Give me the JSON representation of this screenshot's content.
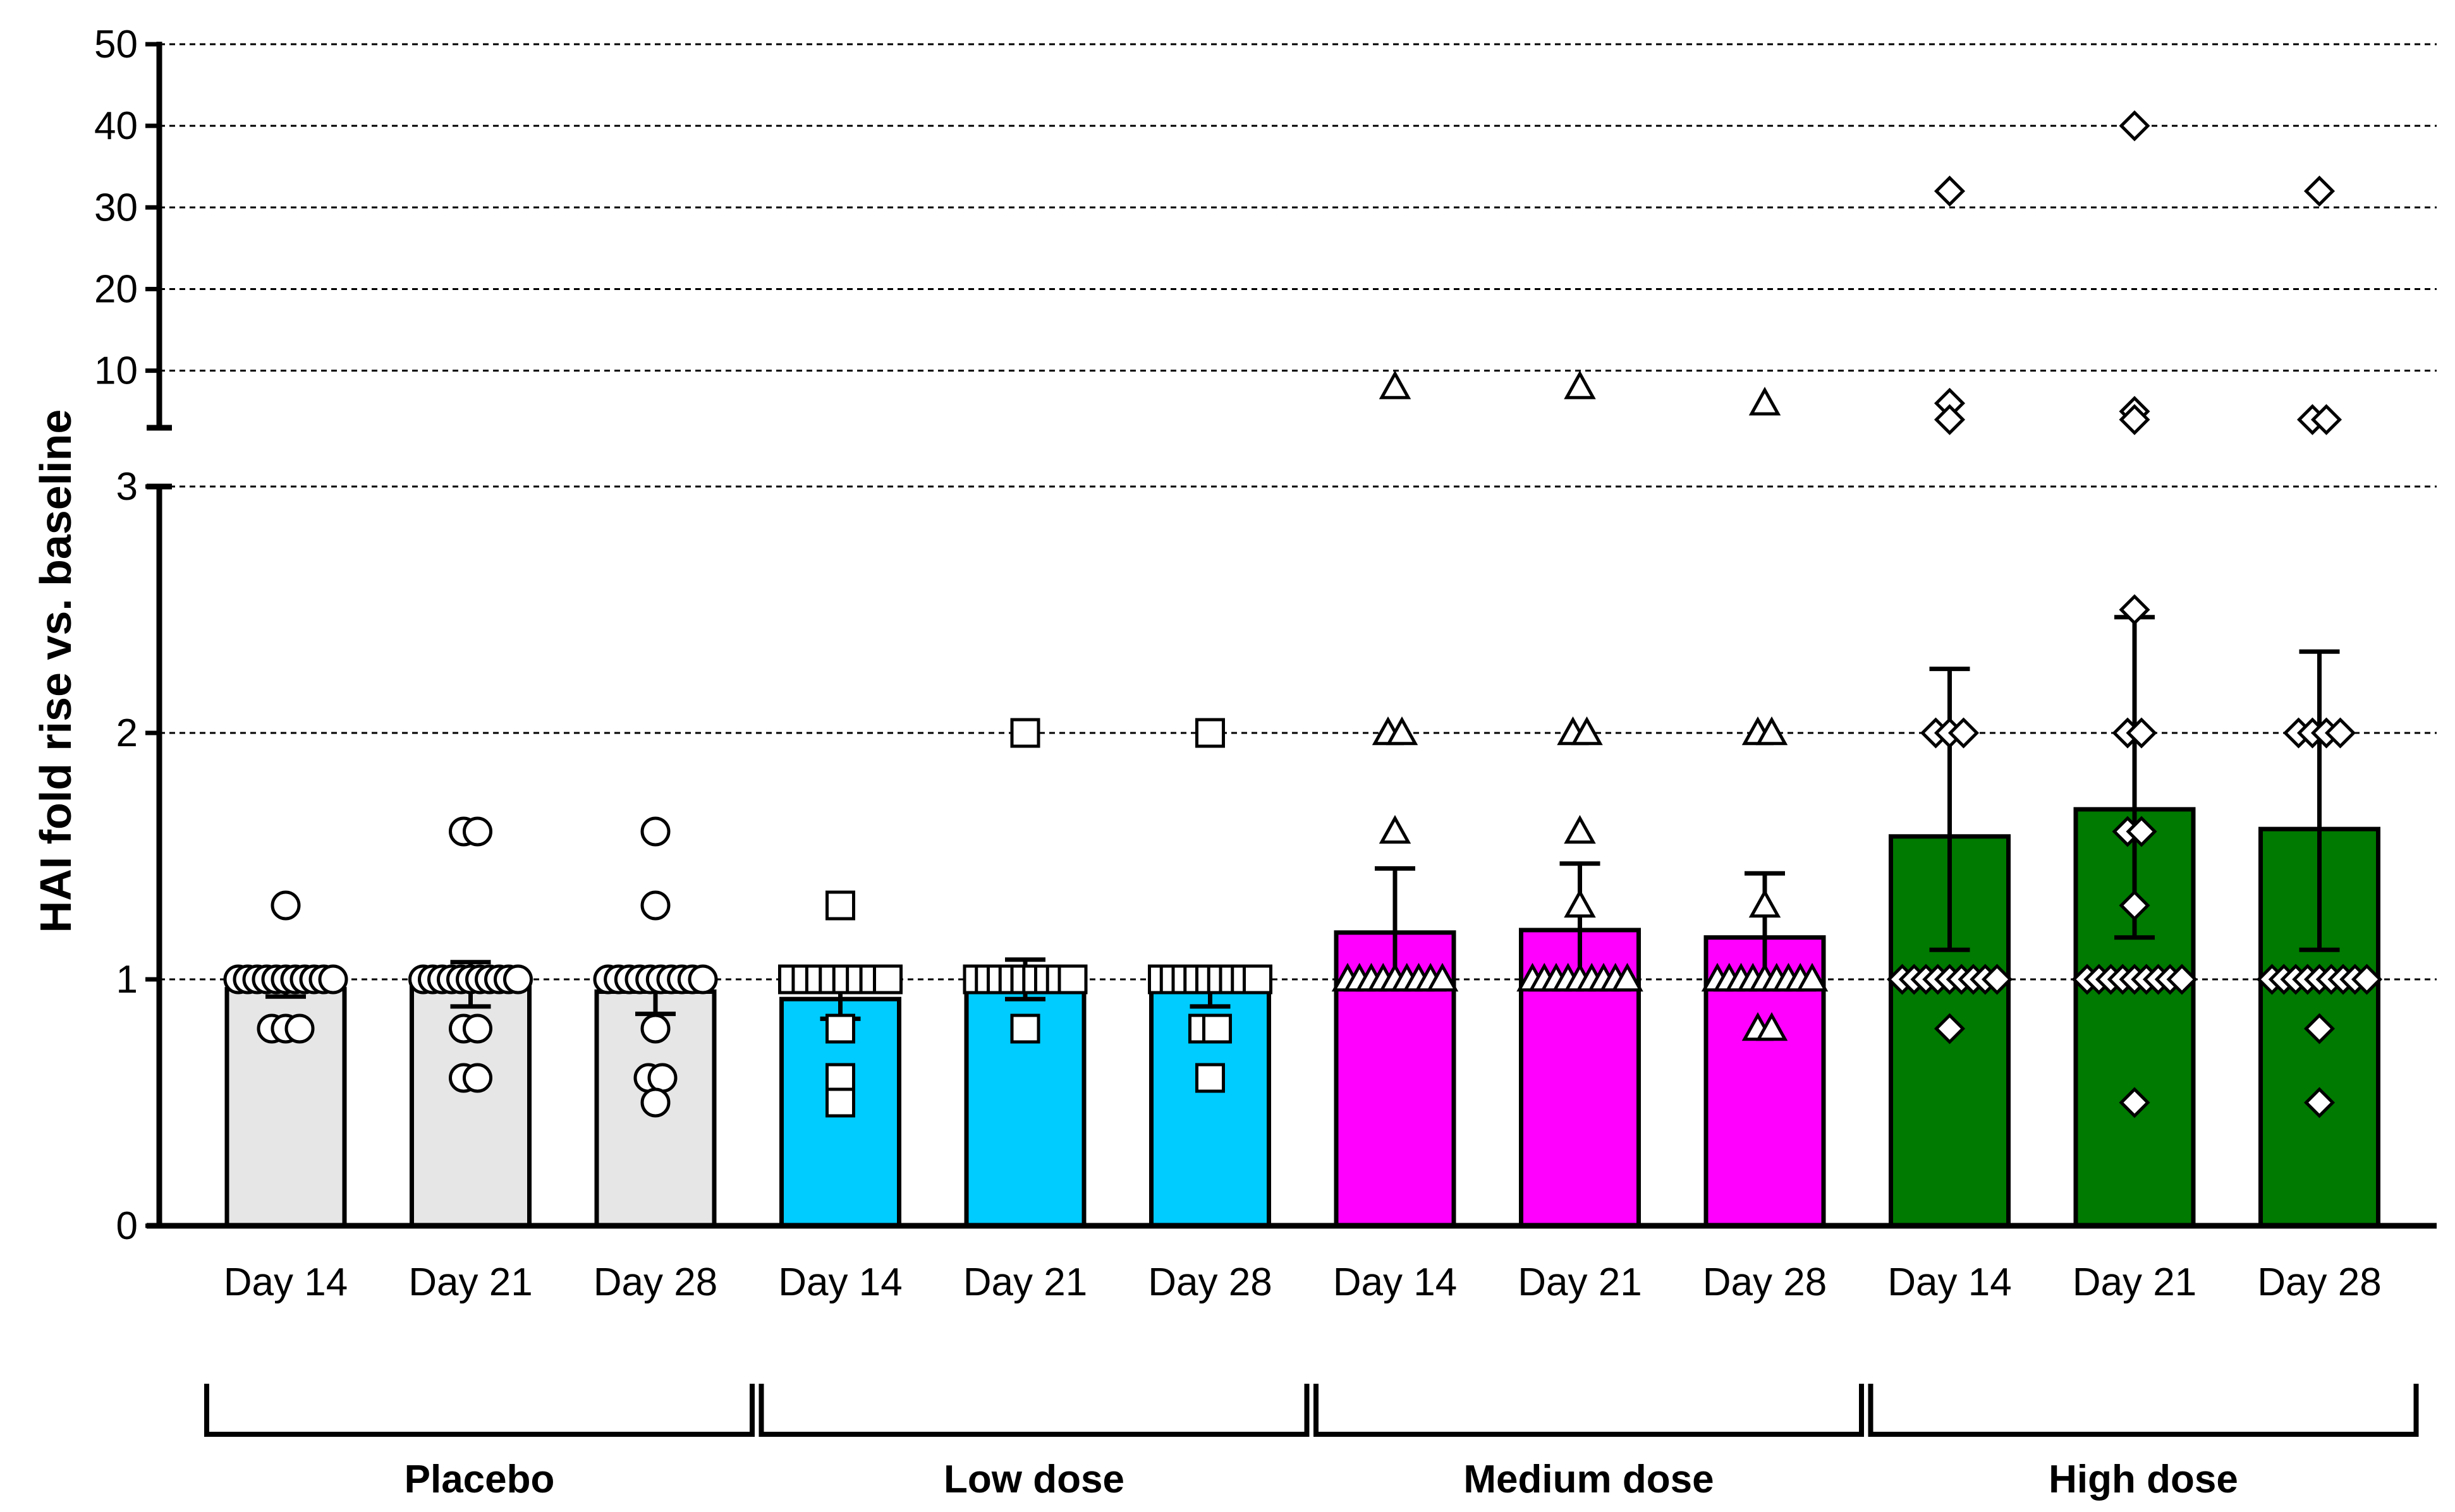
{
  "chart_data": {
    "type": "bar",
    "ylabel": "HAI fold rise vs. baseline",
    "y_axis": {
      "broken": true,
      "lower_ticks": [
        0,
        1,
        2,
        3
      ],
      "upper_ticks": [
        10,
        20,
        30,
        40,
        50
      ],
      "lower_range": [
        0,
        3
      ],
      "upper_range": [
        3,
        50
      ]
    },
    "grid": "dashed horizontal at 1, 2, 3, 10, 20, 30, 40, 50",
    "categories": [
      "Day 14",
      "Day 21",
      "Day 28",
      "Day 14",
      "Day 21",
      "Day 28",
      "Day 14",
      "Day 21",
      "Day 28",
      "Day 14",
      "Day 21",
      "Day 28"
    ],
    "groups": [
      {
        "name": "Placebo",
        "color": "#e6e6e6",
        "marker": "circle"
      },
      {
        "name": "Low dose",
        "color": "#00ccff",
        "marker": "square"
      },
      {
        "name": "Medium dose",
        "color": "#ff00ff",
        "marker": "triangle"
      },
      {
        "name": "High dose",
        "color": "#007a00",
        "marker": "diamond"
      }
    ],
    "series": [
      {
        "group": 0,
        "day": "Day 14",
        "mean": 0.96,
        "err_low": 0.93,
        "err_high": 1.0,
        "points": [
          1,
          1,
          1,
          1,
          1,
          1,
          1,
          1,
          1,
          1,
          1,
          1.3,
          0.8,
          0.8,
          0.8
        ]
      },
      {
        "group": 0,
        "day": "Day 21",
        "mean": 0.98,
        "err_low": 0.89,
        "err_high": 1.07,
        "points": [
          1,
          1,
          1,
          1,
          1,
          1,
          1,
          1,
          1,
          1,
          1,
          1.6,
          1.6,
          0.8,
          0.8,
          0.6,
          0.6
        ]
      },
      {
        "group": 0,
        "day": "Day 28",
        "mean": 0.95,
        "err_low": 0.86,
        "err_high": 1.0,
        "points": [
          1,
          1,
          1,
          1,
          1,
          1,
          1,
          1,
          1,
          1,
          1.6,
          1.3,
          0.8,
          0.6,
          0.6,
          0.5
        ]
      },
      {
        "group": 1,
        "day": "Day 14",
        "mean": 0.92,
        "err_low": 0.84,
        "err_high": 1.0,
        "points": [
          1,
          1,
          1,
          1,
          1,
          1,
          1,
          1,
          1.3,
          0.8,
          0.6,
          0.5
        ]
      },
      {
        "group": 1,
        "day": "Day 21",
        "mean": 1.0,
        "err_low": 0.92,
        "err_high": 1.08,
        "points": [
          1,
          1,
          1,
          1,
          1,
          1,
          1,
          1,
          1,
          2,
          0.8
        ]
      },
      {
        "group": 1,
        "day": "Day 28",
        "mean": 0.97,
        "err_low": 0.89,
        "err_high": 1.04,
        "points": [
          1,
          1,
          1,
          1,
          1,
          1,
          1,
          1,
          1,
          2,
          0.8,
          0.8,
          0.6
        ]
      },
      {
        "group": 2,
        "day": "Day 14",
        "mean": 1.19,
        "err_low": 1.0,
        "err_high": 1.45,
        "points": [
          1,
          1,
          1,
          1,
          1,
          1,
          1,
          1,
          1,
          2,
          2,
          1.6,
          8
        ]
      },
      {
        "group": 2,
        "day": "Day 21",
        "mean": 1.2,
        "err_low": 1.0,
        "err_high": 1.47,
        "points": [
          1,
          1,
          1,
          1,
          1,
          1,
          1,
          1,
          1,
          2,
          2,
          1.6,
          1.3,
          8
        ]
      },
      {
        "group": 2,
        "day": "Day 28",
        "mean": 1.17,
        "err_low": 1.0,
        "err_high": 1.43,
        "points": [
          1,
          1,
          1,
          1,
          1,
          1,
          1,
          1,
          1,
          2,
          2,
          1.3,
          0.8,
          0.8,
          6
        ]
      },
      {
        "group": 3,
        "day": "Day 14",
        "mean": 1.58,
        "err_low": 1.12,
        "err_high": 2.26,
        "points": [
          1,
          1,
          1,
          1,
          1,
          1,
          1,
          1,
          1,
          2,
          2,
          2,
          0.8,
          32,
          6,
          4
        ]
      },
      {
        "group": 3,
        "day": "Day 21",
        "mean": 1.69,
        "err_low": 1.17,
        "err_high": 2.47,
        "points": [
          1,
          1,
          1,
          1,
          1,
          1,
          1,
          1,
          1,
          2,
          2,
          1.6,
          1.6,
          1.3,
          2.5,
          0.5,
          40,
          5,
          4
        ]
      },
      {
        "group": 3,
        "day": "Day 28",
        "mean": 1.61,
        "err_low": 1.12,
        "err_high": 2.33,
        "points": [
          1,
          1,
          1,
          1,
          1,
          1,
          1,
          1,
          1,
          2,
          2,
          2,
          2,
          0.8,
          0.5,
          32,
          4,
          4
        ]
      }
    ],
    "group_labels": [
      "Placebo",
      "Low dose",
      "Medium dose",
      "High dose"
    ]
  }
}
